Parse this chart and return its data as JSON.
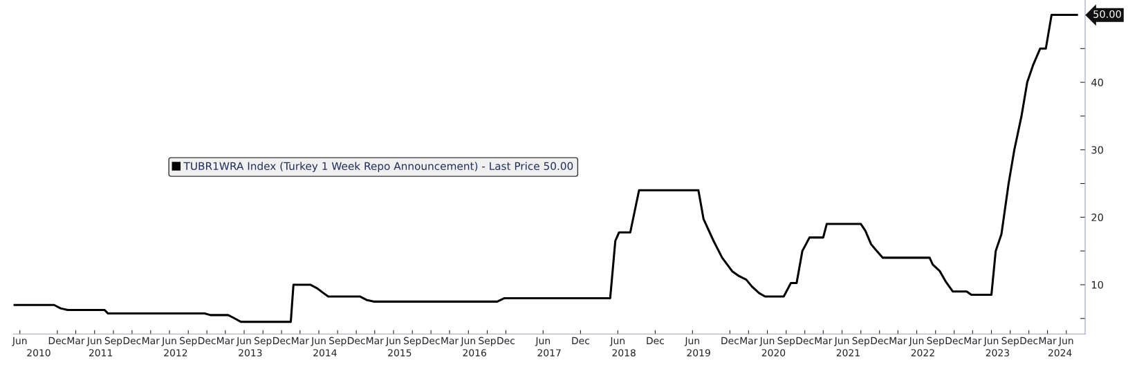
{
  "chart_data": {
    "type": "line",
    "legend": "center left",
    "grid": false,
    "marker": "none",
    "line_style": "solid",
    "xlim": [
      "2010-05-01",
      "2024-09-01"
    ],
    "xticks": [
      {
        "value": "2010-06",
        "label": "Jun"
      },
      {
        "value": "2010-12",
        "label": "Dec"
      },
      {
        "value": "2011-03",
        "label": "Mar"
      },
      {
        "value": "2011-06",
        "label": "Jun"
      },
      {
        "value": "2011-09",
        "label": "Sep"
      },
      {
        "value": "2011-12",
        "label": "Dec"
      },
      {
        "value": "2012-03",
        "label": "Mar"
      },
      {
        "value": "2012-06",
        "label": "Jun"
      },
      {
        "value": "2012-09",
        "label": "Sep"
      },
      {
        "value": "2012-12",
        "label": "Dec"
      },
      {
        "value": "2013-03",
        "label": "Mar"
      },
      {
        "value": "2013-06",
        "label": "Jun"
      },
      {
        "value": "2013-09",
        "label": "Sep"
      },
      {
        "value": "2013-12",
        "label": "Dec"
      },
      {
        "value": "2014-03",
        "label": "Mar"
      },
      {
        "value": "2014-06",
        "label": "Jun"
      },
      {
        "value": "2014-09",
        "label": "Sep"
      },
      {
        "value": "2014-12",
        "label": "Dec"
      },
      {
        "value": "2015-03",
        "label": "Mar"
      },
      {
        "value": "2015-06",
        "label": "Jun"
      },
      {
        "value": "2015-09",
        "label": "Sep"
      },
      {
        "value": "2015-12",
        "label": "Dec"
      },
      {
        "value": "2016-03",
        "label": "Mar"
      },
      {
        "value": "2016-06",
        "label": "Jun"
      },
      {
        "value": "2016-09",
        "label": "Sep"
      },
      {
        "value": "2016-12",
        "label": "Dec"
      },
      {
        "value": "2017-06",
        "label": "Jun"
      },
      {
        "value": "2017-12",
        "label": "Dec"
      },
      {
        "value": "2018-06",
        "label": "Jun"
      },
      {
        "value": "2018-12",
        "label": "Dec"
      },
      {
        "value": "2019-06",
        "label": "Jun"
      },
      {
        "value": "2019-12",
        "label": "Dec"
      },
      {
        "value": "2020-03",
        "label": "Mar"
      },
      {
        "value": "2020-06",
        "label": "Jun"
      },
      {
        "value": "2020-09",
        "label": "Sep"
      },
      {
        "value": "2020-12",
        "label": "Dec"
      },
      {
        "value": "2021-03",
        "label": "Mar"
      },
      {
        "value": "2021-06",
        "label": "Jun"
      },
      {
        "value": "2021-09",
        "label": "Sep"
      },
      {
        "value": "2021-12",
        "label": "Dec"
      },
      {
        "value": "2022-03",
        "label": "Mar"
      },
      {
        "value": "2022-06",
        "label": "Jun"
      },
      {
        "value": "2022-09",
        "label": "Sep"
      },
      {
        "value": "2022-12",
        "label": "Dec"
      },
      {
        "value": "2023-03",
        "label": "Mar"
      },
      {
        "value": "2023-06",
        "label": "Jun"
      },
      {
        "value": "2023-09",
        "label": "Sep"
      },
      {
        "value": "2023-12",
        "label": "Dec"
      },
      {
        "value": "2024-03",
        "label": "Mar"
      },
      {
        "value": "2024-06",
        "label": "Jun"
      }
    ],
    "x2ticks": [
      {
        "value": "2010-09",
        "label": "2010"
      },
      {
        "value": "2011-07",
        "label": "2011"
      },
      {
        "value": "2012-07",
        "label": "2012"
      },
      {
        "value": "2013-07",
        "label": "2013"
      },
      {
        "value": "2014-07",
        "label": "2014"
      },
      {
        "value": "2015-07",
        "label": "2015"
      },
      {
        "value": "2016-07",
        "label": "2016"
      },
      {
        "value": "2017-07",
        "label": "2017"
      },
      {
        "value": "2018-07",
        "label": "2018"
      },
      {
        "value": "2019-07",
        "label": "2019"
      },
      {
        "value": "2020-07",
        "label": "2020"
      },
      {
        "value": "2021-07",
        "label": "2021"
      },
      {
        "value": "2022-07",
        "label": "2022"
      },
      {
        "value": "2023-07",
        "label": "2023"
      },
      {
        "value": "2024-05",
        "label": "2024"
      }
    ],
    "ylim": [
      2.7,
      52.2
    ],
    "yticks": [
      {
        "value": 5,
        "label": null
      },
      10,
      {
        "value": 15,
        "label": null
      },
      20,
      {
        "value": 25,
        "label": null
      },
      30,
      {
        "value": 35,
        "label": null
      },
      40,
      {
        "value": 45,
        "label": null
      }
    ],
    "annotations": [
      "50.00"
    ],
    "x2lim": [
      "2010-05-01",
      "2024-09-01"
    ],
    "series": [
      {
        "name": "TUBR1WRA Index (Turkey 1 Week Repo Announcement) - Last Price 50.00",
        "color": "#000000",
        "x": [
          "2010-05-01",
          "2010-11-15",
          "2010-12-17",
          "2011-01-21",
          "2011-07-20",
          "2011-08-05",
          "2012-11-20",
          "2012-12-18",
          "2013-03-15",
          "2013-04-16",
          "2013-05-16",
          "2014-01-15",
          "2014-01-28",
          "2014-04-20",
          "2014-05-22",
          "2014-06-24",
          "2014-07-17",
          "2014-12-20",
          "2015-01-20",
          "2015-02-24",
          "2016-10-20",
          "2016-11-24",
          "2018-04-25",
          "2018-05-20",
          "2018-06-07",
          "2018-08-01",
          "2018-09-13",
          "2019-06-30",
          "2019-07-25",
          "2019-09-12",
          "2019-10-24",
          "2019-12-12",
          "2020-01-16",
          "2020-02-19",
          "2020-03-17",
          "2020-04-22",
          "2020-05-21",
          "2020-08-20",
          "2020-09-24",
          "2020-10-22",
          "2020-11-19",
          "2020-12-24",
          "2021-03-01",
          "2021-03-18",
          "2021-09-01",
          "2021-09-23",
          "2021-10-21",
          "2021-11-18",
          "2021-12-17",
          "2022-08-03",
          "2022-08-18",
          "2022-09-22",
          "2022-10-20",
          "2022-11-24",
          "2023-01-31",
          "2023-02-23",
          "2023-06-01",
          "2023-06-22",
          "2023-07-20",
          "2023-08-24",
          "2023-09-21",
          "2023-10-26",
          "2023-11-23",
          "2023-12-21",
          "2024-01-25",
          "2024-02-22",
          "2024-03-21",
          "2024-07-23"
        ],
        "values": [
          7.0,
          7.0,
          6.5,
          6.25,
          6.25,
          5.75,
          5.75,
          5.5,
          5.5,
          5.0,
          4.5,
          4.5,
          10.0,
          10.0,
          9.5,
          8.75,
          8.25,
          8.25,
          7.75,
          7.5,
          7.5,
          8.0,
          8.0,
          16.5,
          17.75,
          17.75,
          24.0,
          24.0,
          19.75,
          16.5,
          14.0,
          12.0,
          11.25,
          10.75,
          9.75,
          8.75,
          8.25,
          8.25,
          10.25,
          10.25,
          15.0,
          17.0,
          17.0,
          19.0,
          19.0,
          18.0,
          16.0,
          15.0,
          14.0,
          14.0,
          13.0,
          12.0,
          10.5,
          9.0,
          9.0,
          8.5,
          8.5,
          15.0,
          17.5,
          25.0,
          30.0,
          35.0,
          40.0,
          42.5,
          45.0,
          45.0,
          50.0,
          50.0
        ]
      }
    ]
  }
}
